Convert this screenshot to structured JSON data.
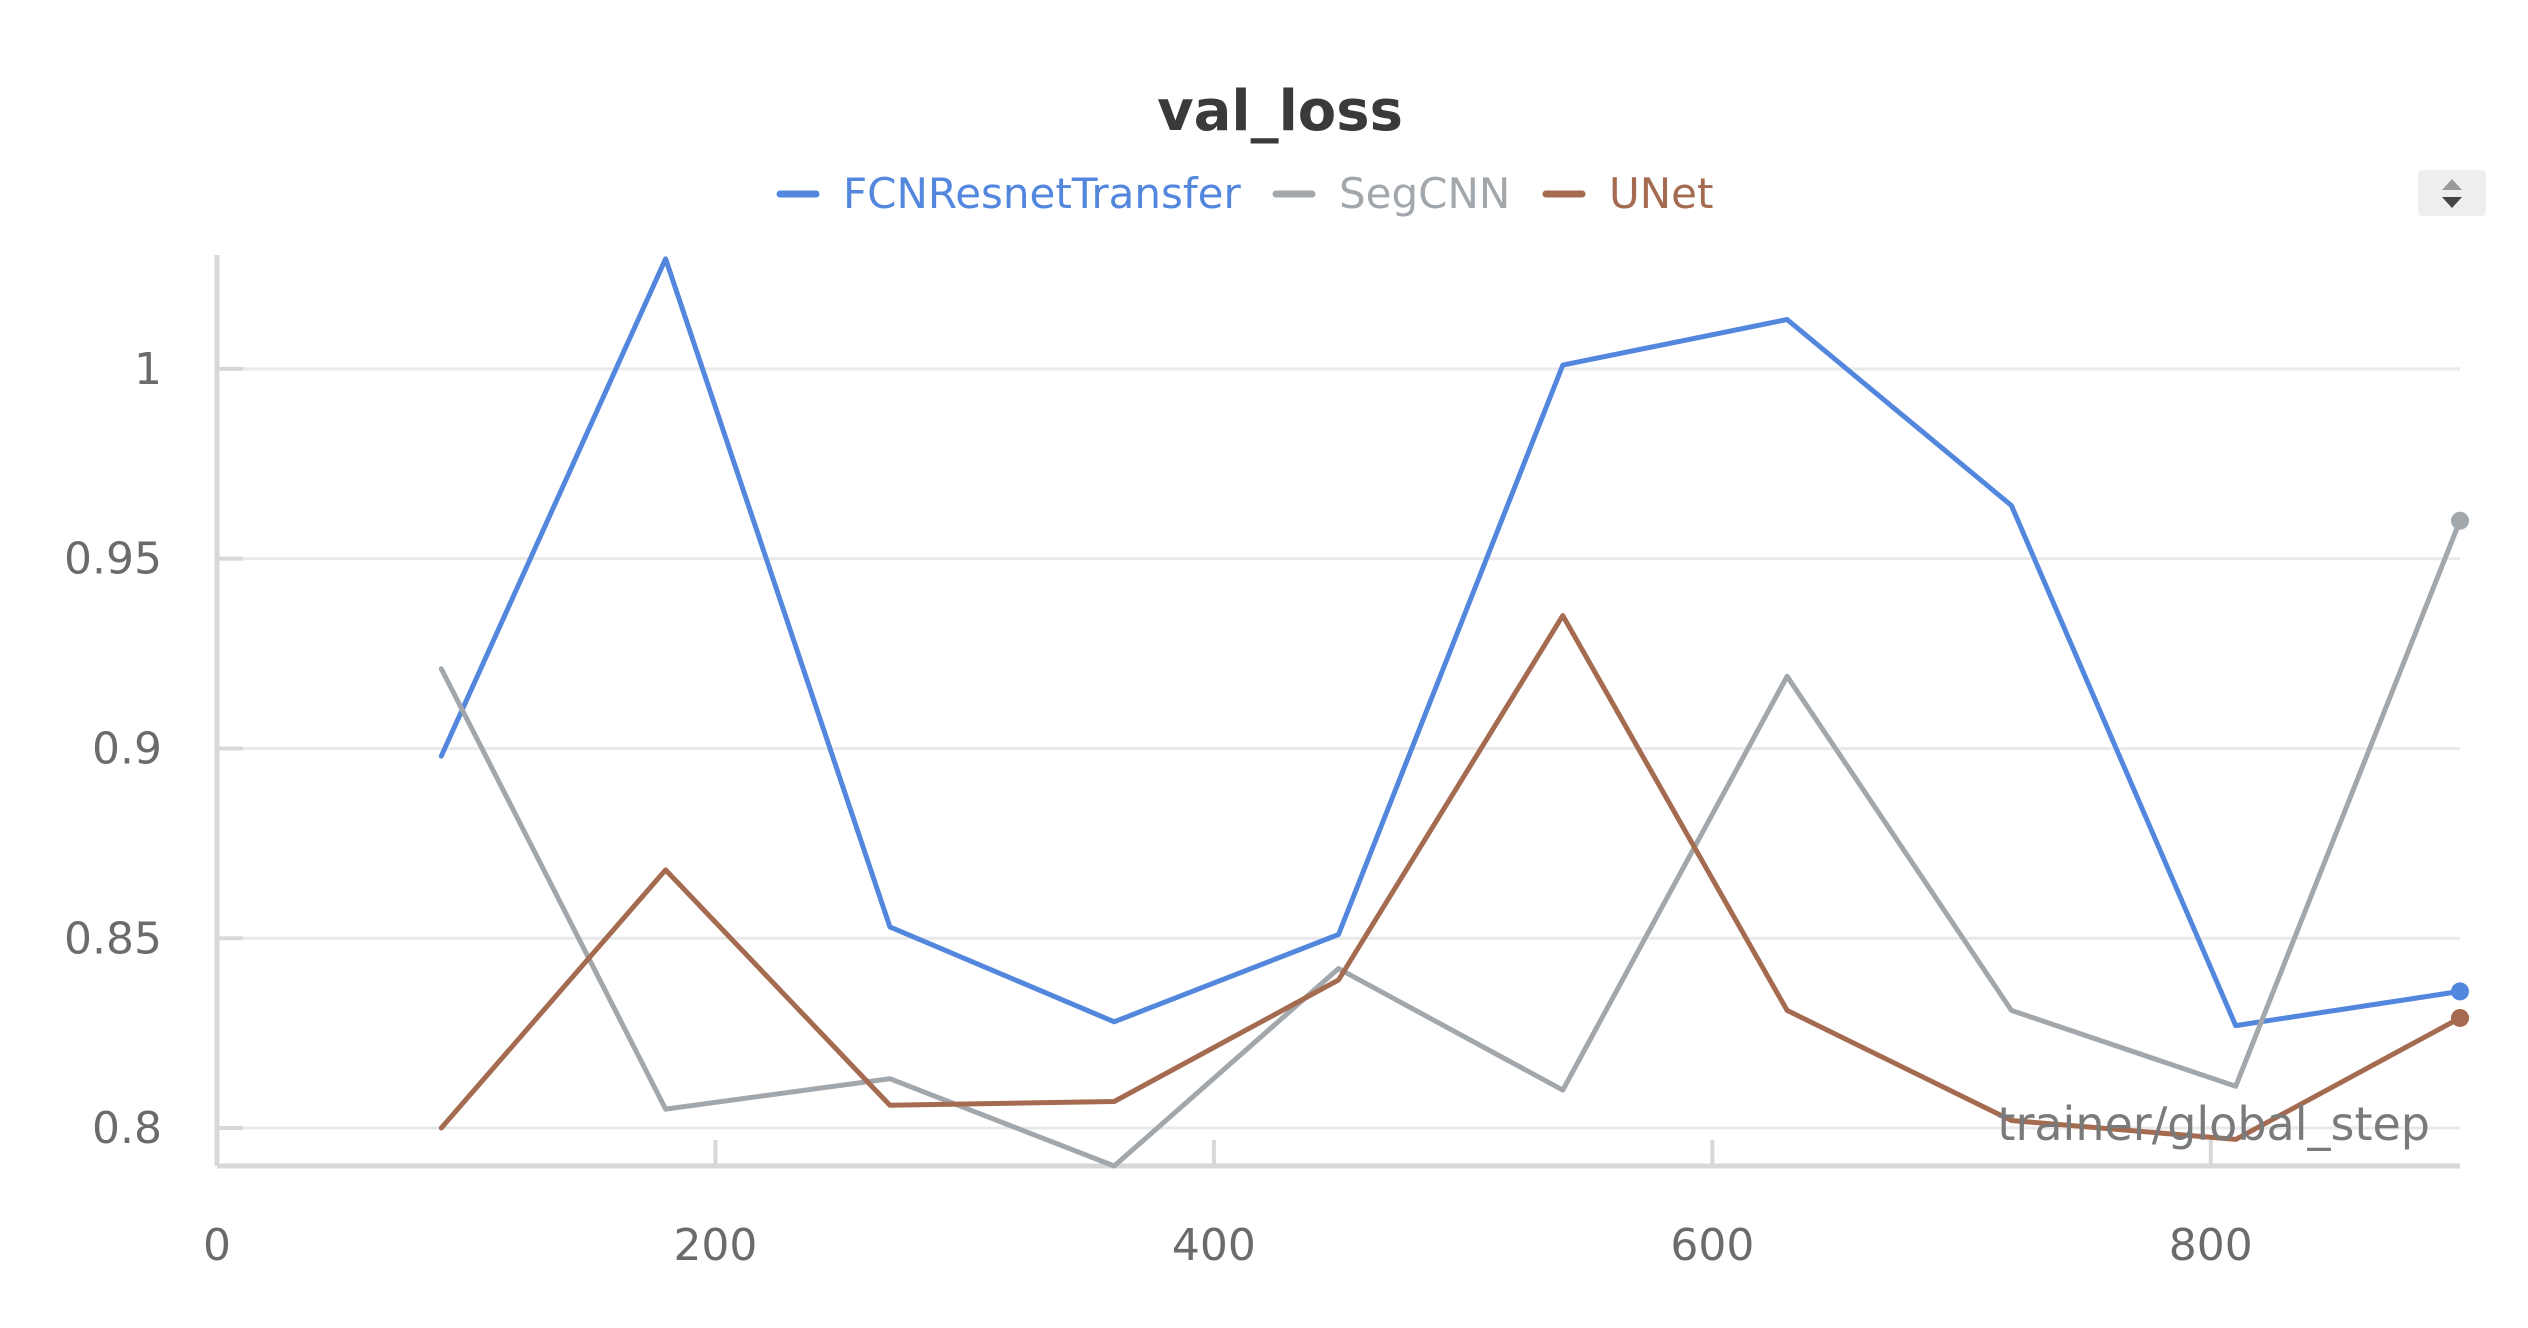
{
  "chart_data": {
    "type": "line",
    "title": "val_loss",
    "xlabel": "trainer/global_step",
    "ylabel": "",
    "xlim": [
      0,
      900
    ],
    "ylim": [
      0.79,
      1.03
    ],
    "x_ticks": [
      0,
      200,
      400,
      600,
      800
    ],
    "x_tick_labels": [
      "0",
      "200",
      "400",
      "600",
      "800"
    ],
    "y_ticks": [
      0.8,
      0.85,
      0.9,
      0.95,
      1.0
    ],
    "y_tick_labels": [
      "0.8",
      "0.85",
      "0.9",
      "0.95",
      "1"
    ],
    "grid": true,
    "legend_position": "top-center",
    "x": [
      90,
      180,
      270,
      360,
      450,
      540,
      630,
      720,
      810,
      900
    ],
    "series": [
      {
        "name": "FCNResnetTransfer",
        "color": "#5387dd",
        "values": [
          0.898,
          1.029,
          0.853,
          0.828,
          0.851,
          1.001,
          1.013,
          0.964,
          0.827,
          0.836
        ]
      },
      {
        "name": "SegCNN",
        "color": "#a2a7ac",
        "values": [
          0.921,
          0.805,
          0.813,
          0.79,
          0.842,
          0.81,
          0.919,
          0.831,
          0.811,
          0.96
        ]
      },
      {
        "name": "UNet",
        "color": "#a56b50",
        "values": [
          0.8,
          0.868,
          0.806,
          0.807,
          0.839,
          0.935,
          0.831,
          0.802,
          0.797,
          0.829
        ]
      }
    ]
  },
  "controls": {
    "sort_toggle_icon": "up-down-arrows-icon"
  }
}
